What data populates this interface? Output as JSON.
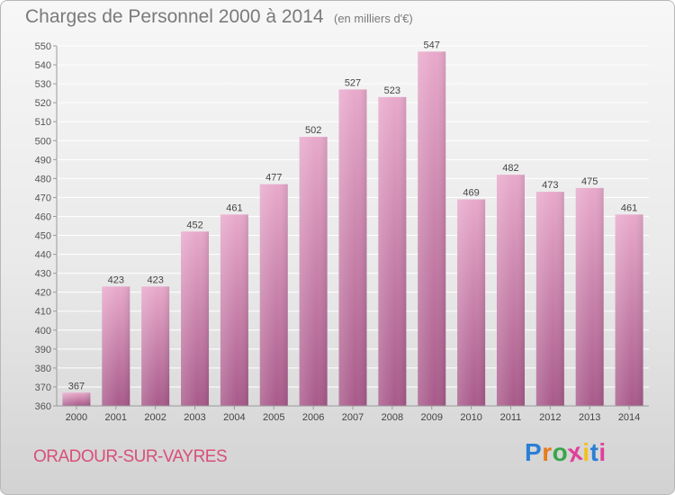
{
  "header": {
    "title": "Charges de Personnel 2000 à 2014",
    "subtitle": "(en milliers d'€)"
  },
  "footer": {
    "commune": "ORADOUR-SUR-VAYRES",
    "logo": "Proxiti"
  },
  "colors": {
    "bar_top": "#e8a9cb",
    "bar_bottom": "#a85a8a",
    "commune": "#d94f7a"
  },
  "chart_data": {
    "type": "bar",
    "title": "Charges de Personnel 2000 à 2014",
    "subtitle": "(en milliers d'€)",
    "categories": [
      "2000",
      "2001",
      "2002",
      "2003",
      "2004",
      "2005",
      "2006",
      "2007",
      "2008",
      "2009",
      "2010",
      "2011",
      "2012",
      "2013",
      "2014"
    ],
    "values": [
      367,
      423,
      423,
      452,
      461,
      477,
      502,
      527,
      523,
      547,
      469,
      482,
      473,
      475,
      461
    ],
    "ylim": [
      360,
      550
    ],
    "ytick_step": 10,
    "grid": true
  }
}
